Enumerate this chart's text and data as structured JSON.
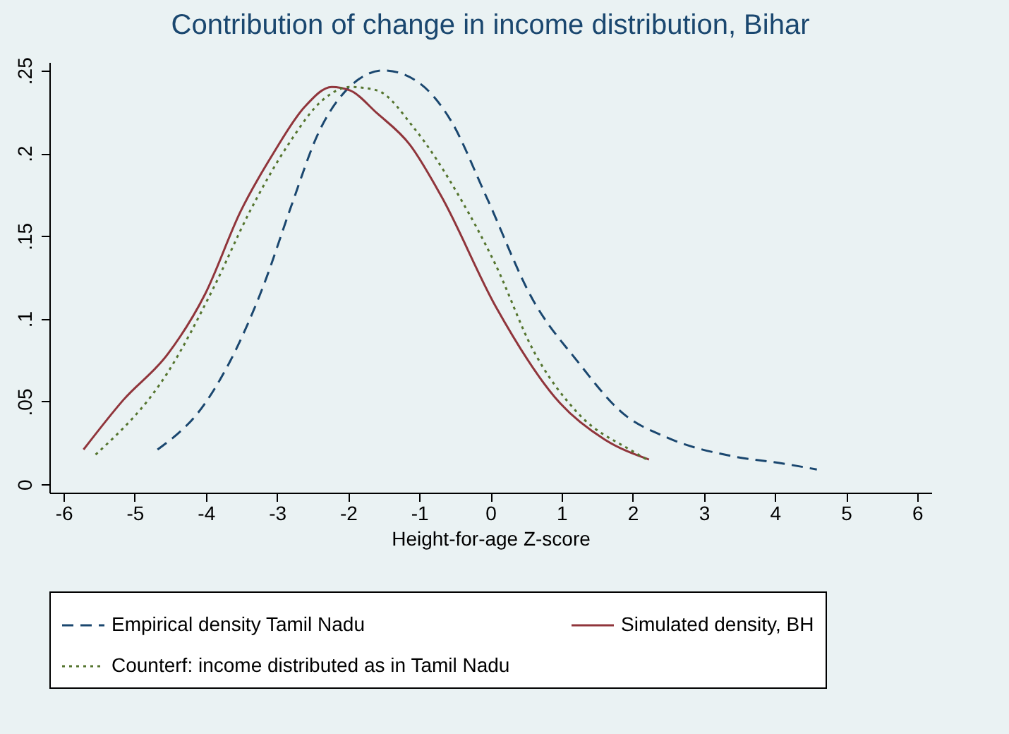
{
  "chart_data": {
    "type": "line",
    "title": "Contribution of change in income distribution, Bihar",
    "xlabel": "Height-for-age Z-score",
    "xlim": [
      -6.2,
      6.2
    ],
    "xticks": [
      -6,
      -5,
      -4,
      -3,
      -2,
      -1,
      0,
      1,
      2,
      3,
      4,
      5,
      6
    ],
    "ylim": [
      -0.005,
      0.255
    ],
    "yticks": [
      0,
      {
        "value": 0.05,
        "label": ".05"
      },
      {
        "value": 0.1,
        "label": ".1"
      },
      {
        "value": 0.15,
        "label": ".15"
      },
      {
        "value": 0.2,
        "label": ".2"
      },
      {
        "value": 0.25,
        "label": ".25"
      }
    ],
    "grid": false,
    "legend": "bottom",
    "marker": "none",
    "series": [
      {
        "name": "Empirical density Tamil Nadu",
        "color": "#1a476f",
        "line_style": "dashed",
        "x": [
          -4.68,
          -4.01,
          -3.57,
          -3.19,
          -2.8,
          -2.42,
          -1.98,
          -1.5,
          -1.02,
          -0.56,
          -0.06,
          0.59,
          1.23,
          1.86,
          2.5,
          3.4,
          4.05,
          4.59
        ],
        "values": [
          0.021,
          0.049,
          0.082,
          0.12,
          0.168,
          0.212,
          0.24,
          0.25,
          0.243,
          0.22,
          0.174,
          0.112,
          0.074,
          0.043,
          0.028,
          0.017,
          0.013,
          0.009
        ]
      },
      {
        "name": "Simulated density, BH",
        "color": "#90353b",
        "line_style": "solid",
        "x": [
          -5.72,
          -5.16,
          -4.53,
          -4.01,
          -3.51,
          -3.05,
          -2.61,
          -2.23,
          -1.98,
          -1.59,
          -1.13,
          -0.69,
          0.08,
          0.98,
          1.61,
          2.23
        ],
        "values": [
          0.021,
          0.051,
          0.079,
          0.115,
          0.165,
          0.2,
          0.228,
          0.24,
          0.238,
          0.224,
          0.205,
          0.174,
          0.107,
          0.049,
          0.027,
          0.015
        ]
      },
      {
        "name": "Counterf: income distributed as in Tamil Nadu",
        "color": "#55752f",
        "line_style": "dotted",
        "x": [
          -5.55,
          -4.53,
          -3.9,
          -3.38,
          -2.86,
          -2.36,
          -1.98,
          -1.6,
          -1.07,
          -0.44,
          0.08,
          0.59,
          1.23,
          2.0,
          2.2
        ],
        "values": [
          0.018,
          0.068,
          0.118,
          0.165,
          0.204,
          0.232,
          0.24,
          0.238,
          0.215,
          0.174,
          0.132,
          0.082,
          0.043,
          0.02,
          0.015
        ]
      }
    ]
  }
}
